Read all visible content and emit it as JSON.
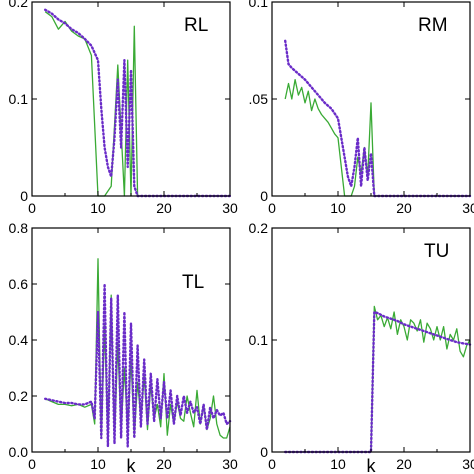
{
  "chart_data": [
    {
      "type": "line",
      "panel_label": "RL",
      "xlim": [
        0,
        30
      ],
      "ylim": [
        0,
        0.2
      ],
      "xticks": [
        "0",
        "10",
        "20",
        "30"
      ],
      "yticks": [
        "0",
        "0.1",
        "0.2"
      ],
      "xlabel": "",
      "grid": false,
      "series": [
        {
          "style": "solid",
          "color": "#3aaa35",
          "x": [
            2,
            3,
            4,
            5,
            6,
            7,
            8,
            9,
            10,
            11,
            12,
            13,
            14,
            14.5,
            15,
            15.5,
            16,
            17,
            18,
            19,
            20,
            21,
            22,
            23,
            24,
            25,
            26,
            27,
            28,
            29,
            30
          ],
          "y": [
            0.19,
            0.185,
            0.172,
            0.18,
            0.17,
            0.165,
            0.162,
            0.145,
            0.0,
            0.0,
            0.01,
            0.135,
            0.0,
            0.14,
            0.0,
            0.175,
            0,
            0,
            0,
            0,
            0,
            0,
            0,
            0,
            0,
            0,
            0,
            0,
            0,
            0,
            0
          ]
        },
        {
          "style": "dotted",
          "color": "#6a2cc8",
          "x": [
            2,
            3,
            4,
            5,
            6,
            7,
            8,
            9,
            10,
            10.5,
            11,
            11.5,
            12,
            12.5,
            13,
            13.5,
            14,
            14.5,
            15,
            15.5,
            16,
            17,
            18,
            19,
            20,
            21,
            22,
            23,
            24,
            25,
            26,
            27,
            28,
            29,
            30
          ],
          "y": [
            0.192,
            0.188,
            0.182,
            0.178,
            0.172,
            0.168,
            0.162,
            0.155,
            0.14,
            0.09,
            0.05,
            0.03,
            0.02,
            0.06,
            0.12,
            0.05,
            0.14,
            0.03,
            0.13,
            0.01,
            0,
            0,
            0,
            0,
            0,
            0,
            0,
            0,
            0,
            0,
            0,
            0,
            0,
            0,
            0
          ]
        }
      ]
    },
    {
      "type": "line",
      "panel_label": "RM",
      "xlim": [
        0,
        30
      ],
      "ylim": [
        0,
        0.1
      ],
      "xticks": [
        "0",
        "10",
        "20",
        "30"
      ],
      "yticks": [
        "0",
        ".05",
        "0.1"
      ],
      "xlabel": "",
      "grid": false,
      "series": [
        {
          "style": "solid",
          "color": "#3aaa35",
          "x": [
            2,
            2.5,
            3,
            3.5,
            4,
            4.5,
            5,
            5.5,
            6,
            6.5,
            7,
            7.5,
            8,
            8.5,
            9,
            9.5,
            10,
            11,
            12,
            12.5,
            13,
            13.5,
            14,
            14.5,
            15,
            15.5,
            16,
            17,
            18,
            19,
            20,
            21,
            22,
            23,
            24,
            25,
            26,
            27,
            28,
            29,
            30
          ],
          "y": [
            0.05,
            0.058,
            0.05,
            0.06,
            0.052,
            0.056,
            0.048,
            0.054,
            0.044,
            0.05,
            0.045,
            0.042,
            0.04,
            0.038,
            0.035,
            0.032,
            0.03,
            0.0,
            0.0,
            0.005,
            0.02,
            0.012,
            0.025,
            0.01,
            0.048,
            0.0,
            0,
            0,
            0,
            0,
            0,
            0,
            0,
            0,
            0,
            0,
            0,
            0,
            0,
            0,
            0
          ]
        },
        {
          "style": "dotted",
          "color": "#6a2cc8",
          "x": [
            2,
            2.5,
            3,
            4,
            5,
            6,
            7,
            8,
            9,
            10,
            10.5,
            11,
            11.5,
            12,
            12.5,
            13,
            13.5,
            14,
            14.5,
            15,
            15.5,
            16,
            17,
            18,
            19,
            20,
            21,
            22,
            23,
            24,
            25,
            26,
            27,
            28,
            29,
            30
          ],
          "y": [
            0.08,
            0.068,
            0.066,
            0.063,
            0.06,
            0.056,
            0.052,
            0.048,
            0.045,
            0.04,
            0.03,
            0.02,
            0.01,
            0.005,
            0.015,
            0.03,
            0.005,
            0.025,
            0.008,
            0.022,
            0.0,
            0,
            0,
            0,
            0,
            0,
            0,
            0,
            0,
            0,
            0,
            0,
            0,
            0,
            0,
            0
          ]
        }
      ]
    },
    {
      "type": "line",
      "panel_label": "TL",
      "xlim": [
        0,
        30
      ],
      "ylim": [
        0,
        0.8
      ],
      "xticks": [
        "0",
        "10",
        "20",
        "30"
      ],
      "yticks": [
        "0.0",
        "0.2",
        "0.4",
        "0.6",
        "0.8"
      ],
      "xlabel": "k",
      "grid": false,
      "series": [
        {
          "style": "solid",
          "color": "#3aaa35",
          "x": [
            2,
            3,
            4,
            5,
            6,
            7,
            8,
            9,
            9.5,
            10,
            10.5,
            11,
            11.5,
            12,
            12.5,
            13,
            13.5,
            14,
            14.5,
            15,
            15.5,
            16,
            16.5,
            17,
            17.5,
            18,
            18.5,
            19,
            19.5,
            20,
            20.5,
            21,
            21.5,
            22,
            22.5,
            23,
            23.5,
            24,
            24.5,
            25,
            25.5,
            26,
            26.5,
            27,
            27.5,
            28,
            28.5,
            29,
            29.5,
            30
          ],
          "y": [
            0.19,
            0.18,
            0.17,
            0.17,
            0.165,
            0.17,
            0.16,
            0.17,
            0.1,
            0.69,
            0.05,
            0.45,
            0.05,
            0.56,
            0.04,
            0.39,
            0.08,
            0.3,
            0.08,
            0.33,
            0.06,
            0.25,
            0.12,
            0.27,
            0.08,
            0.24,
            0.12,
            0.17,
            0.09,
            0.28,
            0.06,
            0.17,
            0.1,
            0.18,
            0.12,
            0.11,
            0.2,
            0.14,
            0.09,
            0.22,
            0.1,
            0.17,
            0.08,
            0.12,
            0.2,
            0.1,
            0.06,
            0.05,
            0.05,
            0.09
          ]
        },
        {
          "style": "dotted",
          "color": "#6a2cc8",
          "x": [
            2,
            3,
            4,
            5,
            6,
            7,
            8,
            9,
            9.5,
            10,
            10.5,
            11,
            11.5,
            12,
            12.5,
            13,
            13.5,
            14,
            14.5,
            15,
            15.5,
            16,
            16.5,
            17,
            17.5,
            18,
            18.5,
            19,
            19.5,
            20,
            20.5,
            21,
            21.5,
            22,
            22.5,
            23,
            23.5,
            24,
            24.5,
            25,
            25.5,
            26,
            26.5,
            27,
            27.5,
            28,
            28.5,
            29,
            29.5,
            30
          ],
          "y": [
            0.19,
            0.185,
            0.18,
            0.175,
            0.175,
            0.17,
            0.17,
            0.18,
            0.12,
            0.5,
            0.05,
            0.6,
            0.02,
            0.55,
            0.03,
            0.56,
            0.05,
            0.5,
            0.02,
            0.46,
            0.05,
            0.38,
            0.09,
            0.33,
            0.1,
            0.28,
            0.11,
            0.26,
            0.12,
            0.25,
            0.12,
            0.22,
            0.1,
            0.2,
            0.13,
            0.2,
            0.14,
            0.18,
            0.14,
            0.16,
            0.1,
            0.17,
            0.08,
            0.16,
            0.12,
            0.15,
            0.13,
            0.14,
            0.1,
            0.11
          ]
        }
      ]
    },
    {
      "type": "line",
      "panel_label": "TU",
      "xlim": [
        0,
        30
      ],
      "ylim": [
        0,
        0.2
      ],
      "xticks": [
        "0",
        "10",
        "20",
        "30"
      ],
      "yticks": [
        "0",
        "0.1",
        "0.2"
      ],
      "xlabel": "k",
      "grid": false,
      "series": [
        {
          "style": "solid",
          "color": "#3aaa35",
          "x": [
            2,
            3,
            4,
            5,
            6,
            7,
            8,
            9,
            10,
            11,
            12,
            13,
            14,
            15,
            15.5,
            16,
            16.5,
            17,
            17.5,
            18,
            18.5,
            19,
            19.5,
            20,
            20.5,
            21,
            21.5,
            22,
            22.5,
            23,
            23.5,
            24,
            24.5,
            25,
            25.5,
            26,
            26.5,
            27,
            27.5,
            28,
            28.5,
            29,
            29.5,
            30
          ],
          "y": [
            0,
            0,
            0,
            0,
            0,
            0,
            0,
            0,
            0,
            0,
            0,
            0,
            0,
            0,
            0.13,
            0.118,
            0.122,
            0.112,
            0.12,
            0.11,
            0.125,
            0.105,
            0.118,
            0.112,
            0.1,
            0.118,
            0.115,
            0.108,
            0.118,
            0.098,
            0.115,
            0.11,
            0.1,
            0.112,
            0.1,
            0.112,
            0.092,
            0.105,
            0.1,
            0.11,
            0.09,
            0.085,
            0.095,
            0.1
          ]
        },
        {
          "style": "dotted",
          "color": "#6a2cc8",
          "x": [
            2,
            3,
            4,
            5,
            6,
            7,
            8,
            9,
            10,
            11,
            12,
            13,
            14,
            15,
            15.5,
            16,
            17,
            18,
            19,
            20,
            21,
            22,
            23,
            24,
            25,
            26,
            27,
            28,
            29,
            30
          ],
          "y": [
            0,
            0,
            0,
            0,
            0,
            0,
            0,
            0,
            0,
            0,
            0,
            0,
            0,
            0,
            0.125,
            0.124,
            0.121,
            0.119,
            0.117,
            0.114,
            0.112,
            0.11,
            0.108,
            0.106,
            0.104,
            0.102,
            0.1,
            0.098,
            0.097,
            0.096
          ]
        }
      ]
    }
  ]
}
